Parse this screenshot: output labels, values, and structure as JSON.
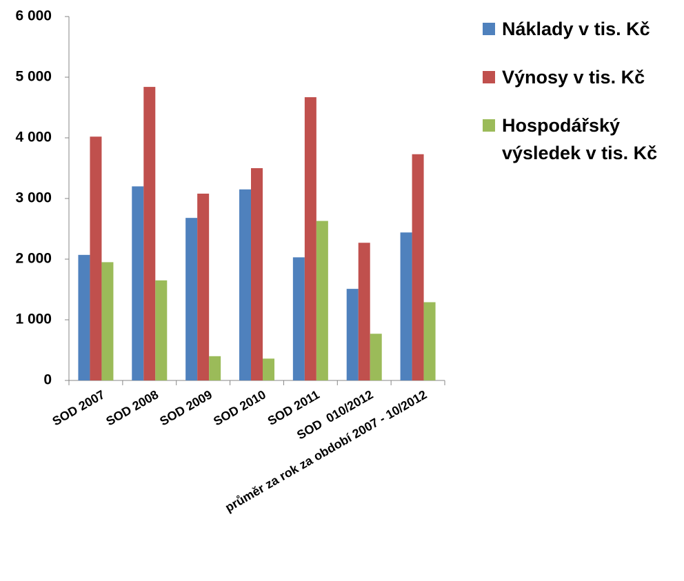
{
  "chart_data": {
    "type": "bar",
    "categories": [
      "SOD 2007",
      "SOD 2008",
      "SOD 2009",
      "SOD 2010",
      "SOD 2011",
      "SOD  010/2012",
      "průměr za rok za období 2007 - 10/2012"
    ],
    "series": [
      {
        "name": "Náklady v tis. Kč",
        "color": "#4f81bd",
        "values": [
          2070,
          3200,
          2680,
          3150,
          2030,
          1510,
          2440
        ]
      },
      {
        "name": "Výnosy v tis. Kč",
        "color": "#c0504d",
        "values": [
          4020,
          4840,
          3080,
          3500,
          4670,
          2270,
          3730
        ]
      },
      {
        "name": "Hospodářský výsledek v tis. Kč",
        "color": "#9bbb59",
        "values": [
          1950,
          1650,
          400,
          360,
          2630,
          770,
          1290
        ]
      }
    ],
    "ylim": [
      0,
      6000
    ],
    "yticks": [
      {
        "value": 0,
        "label": "0"
      },
      {
        "value": 1000,
        "label": "1 000"
      },
      {
        "value": 2000,
        "label": "2 000"
      },
      {
        "value": 3000,
        "label": "3 000"
      },
      {
        "value": 4000,
        "label": "4 000"
      },
      {
        "value": 5000,
        "label": "5 000"
      },
      {
        "value": 6000,
        "label": "6 000"
      }
    ],
    "legend": "right",
    "grid": false
  }
}
